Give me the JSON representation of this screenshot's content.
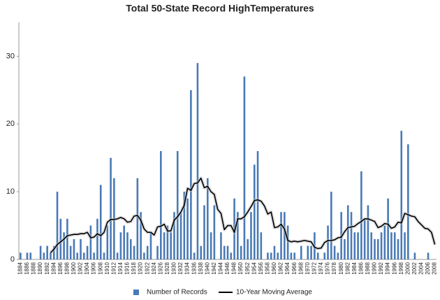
{
  "chart_data": {
    "type": "bar",
    "title": "Total 50-State Record HighTemperatures",
    "categories": [
      "1884",
      null,
      "1886",
      null,
      "1888",
      null,
      "1890",
      null,
      "1892",
      null,
      "1894",
      null,
      "1896",
      null,
      "1898",
      null,
      "1900",
      null,
      "1902",
      null,
      "1904",
      null,
      "1906",
      null,
      "1908",
      null,
      "1910",
      null,
      "1912",
      null,
      "1914",
      null,
      "1916",
      null,
      "1918",
      null,
      "1920",
      null,
      "1922",
      null,
      "1924",
      null,
      "1926",
      null,
      "1928",
      null,
      "1930",
      null,
      "1932",
      null,
      "1934",
      null,
      "1936",
      null,
      "1938",
      null,
      "1940",
      null,
      "1942",
      null,
      "1944",
      null,
      "1946",
      null,
      "1948",
      null,
      "1950",
      null,
      "1952",
      null,
      "1954",
      null,
      "1956",
      null,
      "1958",
      null,
      "1960",
      null,
      "1962",
      null,
      "1964",
      null,
      "1966",
      null,
      "1968",
      null,
      "1970",
      null,
      "1972",
      null,
      "1974",
      null,
      "1976",
      null,
      "1978",
      null,
      "1980",
      null,
      "1982",
      null,
      "1984",
      null,
      "1986",
      null,
      "1988",
      null,
      "1990",
      null,
      "1992",
      null,
      "1994",
      null,
      "1996",
      null,
      "1998",
      null,
      "2000",
      null,
      "2002",
      null,
      "2004",
      null,
      "2006",
      null,
      "2008"
    ],
    "series": [
      {
        "name": "Number of Records",
        "color": "#4a7ab5",
        "type": "bar",
        "values": [
          1,
          0,
          1,
          1,
          0,
          0,
          2,
          1,
          2,
          1,
          2,
          10,
          6,
          4,
          6,
          2,
          3,
          1,
          3,
          1,
          2,
          5,
          1,
          6,
          11,
          1,
          5,
          15,
          12,
          1,
          4,
          5,
          4,
          3,
          2,
          12,
          7,
          1,
          2,
          4,
          0,
          2,
          16,
          4,
          5,
          4,
          7,
          16,
          7,
          10,
          9,
          25,
          1,
          29,
          2,
          8,
          12,
          4,
          8,
          0,
          4,
          2,
          2,
          1,
          9,
          7,
          2,
          27,
          3,
          7,
          14,
          16,
          4,
          0,
          1,
          1,
          2,
          1,
          7,
          7,
          5,
          1,
          1,
          0,
          2,
          0,
          2,
          2,
          4,
          1,
          0,
          1,
          5,
          10,
          2,
          1,
          7,
          3,
          8,
          7,
          4,
          4,
          13,
          6,
          8,
          4,
          3,
          3,
          4,
          5,
          9,
          4,
          4,
          3,
          19,
          4,
          17,
          0,
          1,
          0,
          0,
          0,
          1,
          0,
          0
        ]
      },
      {
        "name": "10-Year Moving Average",
        "color": "#000000",
        "type": "line",
        "values": [
          null,
          null,
          null,
          null,
          null,
          null,
          null,
          null,
          null,
          1,
          1.5,
          2.2,
          2.6,
          3,
          3.5,
          3.6,
          3.7,
          3.7,
          3.8,
          3.8,
          4,
          3.2,
          3.3,
          3.8,
          3.5,
          4,
          5.5,
          5.9,
          5.9,
          6,
          6.2,
          6,
          5.5,
          5.6,
          6.4,
          6.5,
          5.8,
          4.5,
          4,
          4,
          3.6,
          4.8,
          4.9,
          5.2,
          4.2,
          4.2,
          5.8,
          6.3,
          7,
          8,
          10.5,
          10.2,
          11.2,
          11.3,
          12,
          10.6,
          10.8,
          10,
          9.6,
          7.4,
          6.8,
          4.4,
          5,
          5,
          4,
          6,
          6,
          6.3,
          7,
          7.8,
          8.7,
          8.8,
          8.6,
          7.9,
          6.7,
          7,
          4.7,
          4.8,
          5.2,
          4.5,
          2.8,
          2.6,
          2.7,
          2.6,
          2.7,
          2.8,
          2.7,
          2.6,
          1.8,
          1.6,
          1.7,
          2.5,
          2.8,
          2.8,
          2.9,
          3.2,
          3.3,
          4.1,
          4.7,
          4.8,
          4.9,
          5.3,
          5.6,
          6,
          6,
          5.8,
          5.6,
          4.7,
          4.9,
          5.3,
          5.2,
          4.6,
          4.8,
          5.5,
          5.4,
          6.8,
          6.6,
          6.4,
          6.3,
          5.6,
          5.1,
          4.6,
          4.5,
          4,
          2.2
        ]
      }
    ],
    "ylim": [
      0,
      35
    ],
    "yticks": [
      0,
      10,
      20,
      30
    ],
    "grid": false,
    "legend": "bottom"
  }
}
